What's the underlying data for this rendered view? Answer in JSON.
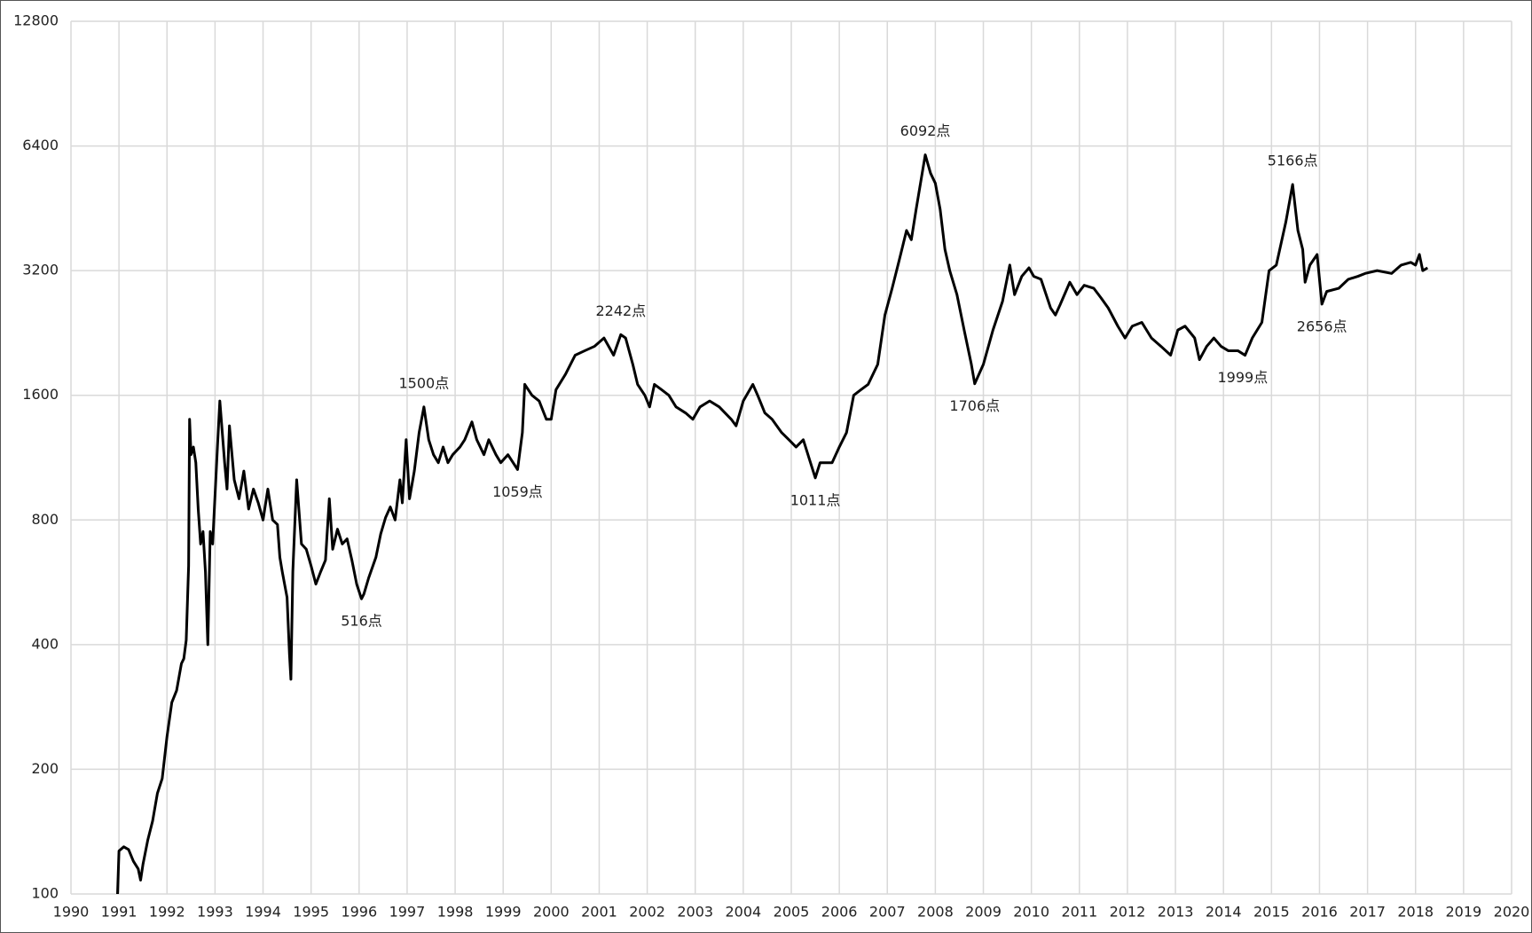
{
  "chart_data": {
    "type": "line",
    "log_scale_y": true,
    "grid": true,
    "xlim": [
      1990,
      2020
    ],
    "xticks": [
      1990,
      1991,
      1992,
      1993,
      1994,
      1995,
      1996,
      1997,
      1998,
      1999,
      2000,
      2001,
      2002,
      2003,
      2004,
      2005,
      2006,
      2007,
      2008,
      2009,
      2010,
      2011,
      2012,
      2013,
      2014,
      2015,
      2016,
      2017,
      2018,
      2019,
      2020
    ],
    "ylim": [
      100,
      12800
    ],
    "yticks": [
      100,
      200,
      400,
      800,
      1600,
      3200,
      6400,
      12800
    ],
    "color": "#000000",
    "x": [
      1990.97,
      1991.0,
      1991.1,
      1991.2,
      1991.3,
      1991.4,
      1991.45,
      1991.5,
      1991.6,
      1991.7,
      1991.8,
      1991.9,
      1992.0,
      1992.1,
      1992.2,
      1992.3,
      1992.35,
      1992.4,
      1992.45,
      1992.47,
      1992.5,
      1992.55,
      1992.6,
      1992.65,
      1992.7,
      1992.75,
      1992.8,
      1992.85,
      1992.9,
      1992.95,
      1993.05,
      1993.1,
      1993.2,
      1993.25,
      1993.3,
      1993.4,
      1993.5,
      1993.6,
      1993.7,
      1993.8,
      1993.9,
      1994.0,
      1994.1,
      1994.2,
      1994.3,
      1994.35,
      1994.4,
      1994.5,
      1994.55,
      1994.58,
      1994.62,
      1994.7,
      1994.8,
      1994.9,
      1995.0,
      1995.1,
      1995.2,
      1995.3,
      1995.38,
      1995.45,
      1995.55,
      1995.65,
      1995.75,
      1995.85,
      1995.95,
      1996.05,
      1996.1,
      1996.2,
      1996.35,
      1996.45,
      1996.55,
      1996.65,
      1996.75,
      1996.85,
      1996.9,
      1996.98,
      1997.05,
      1997.15,
      1997.25,
      1997.35,
      1997.45,
      1997.55,
      1997.65,
      1997.75,
      1997.85,
      1997.95,
      1998.1,
      1998.2,
      1998.35,
      1998.45,
      1998.6,
      1998.7,
      1998.85,
      1998.95,
      1999.1,
      1999.3,
      1999.4,
      1999.45,
      1999.6,
      1999.75,
      1999.9,
      2000.0,
      2000.1,
      2000.3,
      2000.5,
      2000.7,
      2000.9,
      2001.1,
      2001.3,
      2001.45,
      2001.55,
      2001.7,
      2001.8,
      2001.95,
      2002.05,
      2002.15,
      2002.3,
      2002.45,
      2002.6,
      2002.8,
      2002.95,
      2003.1,
      2003.3,
      2003.5,
      2003.75,
      2003.85,
      2004.0,
      2004.2,
      2004.3,
      2004.45,
      2004.6,
      2004.8,
      2004.95,
      2005.1,
      2005.25,
      2005.4,
      2005.5,
      2005.6,
      2005.75,
      2005.85,
      2006.0,
      2006.15,
      2006.3,
      2006.45,
      2006.6,
      2006.8,
      2006.95,
      2007.1,
      2007.25,
      2007.4,
      2007.5,
      2007.6,
      2007.79,
      2007.9,
      2008.0,
      2008.1,
      2008.2,
      2008.3,
      2008.45,
      2008.6,
      2008.75,
      2008.82,
      2009.0,
      2009.2,
      2009.4,
      2009.55,
      2009.65,
      2009.8,
      2009.95,
      2010.05,
      2010.2,
      2010.4,
      2010.5,
      2010.6,
      2010.8,
      2010.95,
      2011.1,
      2011.3,
      2011.45,
      2011.6,
      2011.8,
      2011.95,
      2012.1,
      2012.3,
      2012.5,
      2012.7,
      2012.9,
      2013.05,
      2013.2,
      2013.4,
      2013.5,
      2013.65,
      2013.8,
      2013.95,
      2014.1,
      2014.3,
      2014.45,
      2014.6,
      2014.8,
      2014.95,
      2015.1,
      2015.3,
      2015.44,
      2015.55,
      2015.65,
      2015.7,
      2015.8,
      2015.95,
      2016.05,
      2016.15,
      2016.4,
      2016.6,
      2016.8,
      2016.95,
      2017.2,
      2017.5,
      2017.7,
      2017.9,
      2018.0,
      2018.08,
      2018.15,
      2018.25
    ],
    "values": [
      100,
      127,
      130,
      128,
      120,
      115,
      108,
      118,
      135,
      150,
      175,
      190,
      240,
      290,
      310,
      360,
      370,
      410,
      620,
      1400,
      1150,
      1200,
      1100,
      850,
      700,
      750,
      600,
      400,
      750,
      700,
      1200,
      1550,
      1100,
      950,
      1350,
      1000,
      900,
      1050,
      850,
      950,
      880,
      800,
      950,
      800,
      780,
      650,
      600,
      520,
      380,
      330,
      600,
      1000,
      700,
      680,
      620,
      560,
      600,
      640,
      900,
      680,
      760,
      700,
      720,
      640,
      560,
      516,
      530,
      580,
      650,
      740,
      810,
      860,
      800,
      1000,
      880,
      1250,
      900,
      1050,
      1300,
      1500,
      1250,
      1150,
      1100,
      1200,
      1100,
      1150,
      1200,
      1250,
      1380,
      1250,
      1150,
      1250,
      1150,
      1100,
      1150,
      1059,
      1300,
      1700,
      1600,
      1550,
      1400,
      1400,
      1650,
      1800,
      2000,
      2050,
      2100,
      2200,
      2000,
      2242,
      2200,
      1900,
      1700,
      1600,
      1500,
      1700,
      1650,
      1600,
      1500,
      1450,
      1400,
      1500,
      1550,
      1500,
      1400,
      1350,
      1550,
      1700,
      1600,
      1450,
      1400,
      1300,
      1250,
      1200,
      1250,
      1100,
      1011,
      1100,
      1100,
      1100,
      1200,
      1300,
      1600,
      1650,
      1700,
      1900,
      2500,
      2900,
      3400,
      4000,
      3800,
      4500,
      6092,
      5500,
      5200,
      4500,
      3600,
      3200,
      2800,
      2300,
      1900,
      1706,
      1900,
      2300,
      2700,
      3300,
      2800,
      3100,
      3250,
      3100,
      3050,
      2600,
      2500,
      2650,
      3000,
      2800,
      2950,
      2900,
      2750,
      2600,
      2350,
      2200,
      2350,
      2400,
      2200,
      2100,
      2000,
      2300,
      2350,
      2200,
      1950,
      2100,
      2200,
      2100,
      2050,
      2050,
      1999,
      2200,
      2400,
      3200,
      3300,
      4200,
      5166,
      4000,
      3600,
      3000,
      3300,
      3500,
      2656,
      2850,
      2900,
      3050,
      3100,
      3150,
      3200,
      3150,
      3300,
      3350,
      3300,
      3500,
      3200,
      3250
    ],
    "annotations": [
      {
        "x": 1996.05,
        "value": 516,
        "label": "516点",
        "placement": "below"
      },
      {
        "x": 1997.35,
        "value": 1500,
        "label": "1500点",
        "placement": "above"
      },
      {
        "x": 1999.3,
        "value": 1059,
        "label": "1059点",
        "placement": "below"
      },
      {
        "x": 2001.45,
        "value": 2242,
        "label": "2242点",
        "placement": "above"
      },
      {
        "x": 2005.5,
        "value": 1011,
        "label": "1011点",
        "placement": "below"
      },
      {
        "x": 2007.79,
        "value": 6092,
        "label": "6092点",
        "placement": "above"
      },
      {
        "x": 2008.82,
        "value": 1706,
        "label": "1706点",
        "placement": "below"
      },
      {
        "x": 2014.4,
        "value": 1999,
        "label": "1999点",
        "placement": "below"
      },
      {
        "x": 2015.44,
        "value": 5166,
        "label": "5166点",
        "placement": "above"
      },
      {
        "x": 2016.05,
        "value": 2656,
        "label": "2656点",
        "placement": "below"
      }
    ]
  }
}
